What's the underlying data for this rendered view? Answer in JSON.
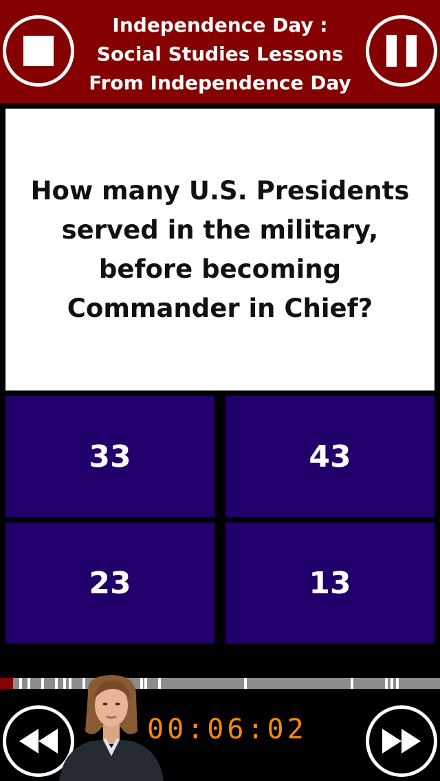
{
  "header": {
    "title_lines": [
      "Independence Day :",
      "Social Studies Lessons",
      "From Independence Day"
    ],
    "stop_icon": "stop-icon",
    "pause_icon": "pause-icon"
  },
  "question": {
    "text": "How many U.S. Presidents served in the military, before becoming Commander in Chief?"
  },
  "answers": [
    "33",
    "43",
    "23",
    "13"
  ],
  "progress": {
    "fraction": 0.03
  },
  "footer": {
    "timer": "00:06:02",
    "rewind_icon": "rewind-icon",
    "forward_icon": "fast-forward-icon"
  },
  "colors": {
    "header_bg": "#850000",
    "answer_bg": "#21006b",
    "timer": "#ff8a00",
    "progress_track": "#8c8c8c"
  }
}
